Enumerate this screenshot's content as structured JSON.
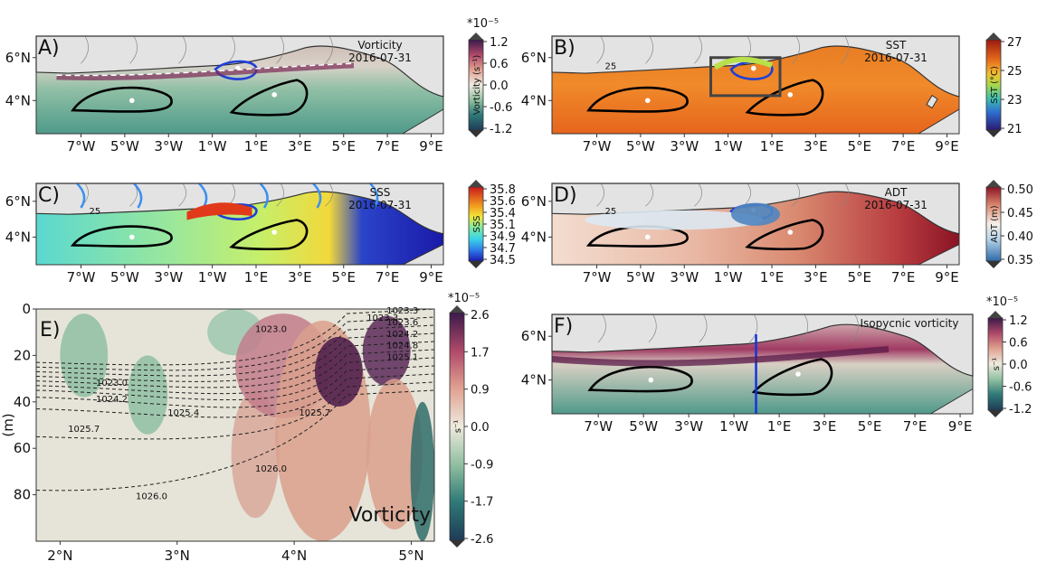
{
  "colors": {
    "land": "#e3e3e3",
    "coast": "#333333",
    "eddy_black": "#000000",
    "eddy_blue": "#1f3fd9",
    "river": "#3b8ff0",
    "section_line": "#1434e0"
  },
  "panels": {
    "A": {
      "letter": "A)",
      "title_line1": "Vorticity",
      "title_line2": "2016-07-31",
      "cb_scale": "*10⁻⁵",
      "cb_label": "Vorticity (s⁻¹)",
      "cb_ticks": [
        "1.2",
        "0.6",
        "0.0",
        "-0.6",
        "-1.2"
      ]
    },
    "B": {
      "letter": "B)",
      "title_line1": "SST",
      "title_line2": "2016-07-31",
      "cb_label": "SST (°C)",
      "cb_ticks": [
        "27",
        "25",
        "23",
        "21"
      ]
    },
    "C": {
      "letter": "C)",
      "title_line1": "SSS",
      "title_line2": "2016-07-31",
      "cb_label": "SSS",
      "cb_ticks": [
        "35.8",
        "35.6",
        "35.4",
        "35.1",
        "34.9",
        "34.7",
        "34.5"
      ]
    },
    "D": {
      "letter": "D)",
      "title_line1": "ADT",
      "title_line2": "2016-07-31",
      "cb_label": "ADT (m)",
      "cb_ticks": [
        "0.50",
        "0.45",
        "0.40",
        "0.35"
      ]
    },
    "E": {
      "letter": "E)",
      "label": "Vorticity",
      "ylabel": "(m)",
      "cb_scale": "*10⁻⁵",
      "cb_label": "s⁻¹",
      "cb_ticks": [
        "2.6",
        "1.7",
        "0.9",
        "0.0",
        "-0.9",
        "-1.7",
        "-2.6"
      ],
      "contour_labels": [
        "1023.3",
        "1023.0",
        "1023.3",
        "1023.6",
        "1024.2",
        "1024.8",
        "1025.1",
        "1023.0",
        "1024.2",
        "1025.4",
        "1025.7",
        "1025.7",
        "1026.0",
        "1026.0"
      ]
    },
    "F": {
      "letter": "F)",
      "title_line1": "Isopycnic vorticity",
      "cb_scale": "*10⁻⁵",
      "cb_label": "s⁻¹",
      "cb_ticks": [
        "1.2",
        "0.6",
        "0.0",
        "-0.6",
        "-1.2"
      ]
    }
  },
  "map_axes": {
    "lon_ticks": [
      "7°W",
      "5°W",
      "3°W",
      "1°W",
      "1°E",
      "3°E",
      "5°E",
      "7°E",
      "9°E"
    ],
    "lat_ticks": [
      "6°N",
      "4°N"
    ]
  },
  "section_axes": {
    "x_ticks": [
      "2°N",
      "3°N",
      "4°N",
      "5°N"
    ],
    "y_ticks": [
      "0",
      "20",
      "40",
      "60",
      "80"
    ]
  },
  "chart_data": [
    {
      "type": "heatmap",
      "panel": "A",
      "title": "Vorticity 2016-07-31",
      "ylabel": "Vorticity (s⁻¹)",
      "colorbar_range": [
        -1.2,
        1.2
      ],
      "scale": "1e-5",
      "x_ticks": [
        "7°W",
        "5°W",
        "3°W",
        "1°W",
        "1°E",
        "3°E",
        "5°E",
        "7°E",
        "9°E"
      ],
      "y_ticks": [
        "6°N",
        "4°N"
      ]
    },
    {
      "type": "heatmap",
      "panel": "B",
      "title": "SST 2016-07-31",
      "ylabel": "SST (°C)",
      "colorbar_range": [
        21,
        27.5
      ],
      "contour_label": "25"
    },
    {
      "type": "heatmap",
      "panel": "C",
      "title": "SSS 2016-07-31",
      "ylabel": "SSS",
      "colorbar_range": [
        34.5,
        35.8
      ],
      "contour_label": "25"
    },
    {
      "type": "heatmap",
      "panel": "D",
      "title": "ADT 2016-07-31",
      "ylabel": "ADT (m)",
      "colorbar_range": [
        0.35,
        0.5
      ],
      "contour_label": "25"
    },
    {
      "type": "heatmap",
      "panel": "E",
      "ylabel": "(m)",
      "colorbar_range": [
        -2.6,
        2.6
      ],
      "scale": "1e-5",
      "x_range": [
        2.0,
        5.4
      ],
      "y_range": [
        0,
        100
      ],
      "x_ticks": [
        "2°N",
        "3°N",
        "4°N",
        "5°N"
      ],
      "y_ticks": [
        0,
        20,
        40,
        60,
        80
      ],
      "density_contours": [
        1023.0,
        1023.3,
        1023.6,
        1024.2,
        1024.8,
        1025.1,
        1025.4,
        1025.7,
        1026.0
      ]
    },
    {
      "type": "heatmap",
      "panel": "F",
      "title": "Isopycnic vorticity",
      "colorbar_range": [
        -1.2,
        1.2
      ],
      "scale": "1e-5"
    }
  ]
}
